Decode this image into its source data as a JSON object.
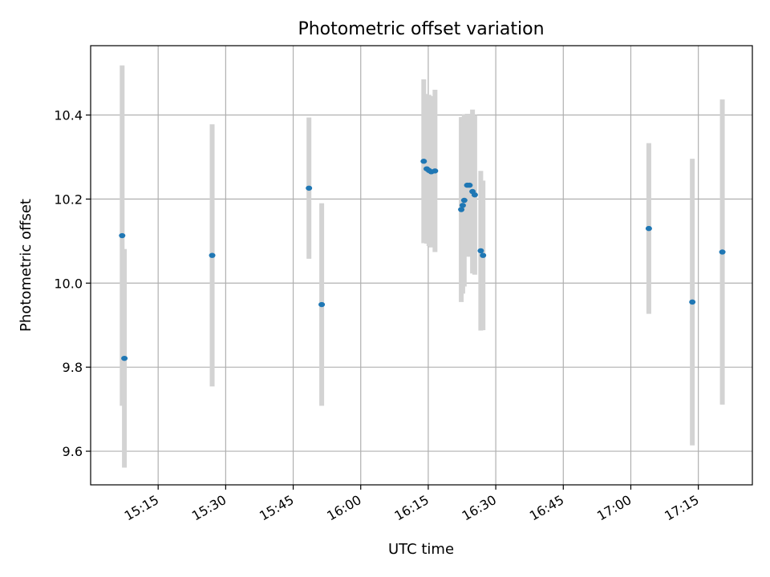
{
  "chart_data": {
    "type": "scatter",
    "title": "Photometric offset variation",
    "xlabel": "UTC time",
    "ylabel": "Photometric offset",
    "xlim": [
      "15:00",
      "17:27"
    ],
    "ylim": [
      9.52,
      10.565
    ],
    "x_ticks": [
      "15:15",
      "15:30",
      "15:45",
      "16:00",
      "16:15",
      "16:30",
      "16:45",
      "17:00",
      "17:15"
    ],
    "y_ticks": [
      9.6,
      9.8,
      10.0,
      10.2,
      10.4
    ],
    "y_tick_labels": [
      "9.6",
      "9.8",
      "10.0",
      "10.2",
      "10.4"
    ],
    "grid": true,
    "marker_color": "#1f77b4",
    "errorbar_color": "#d3d3d3",
    "points": [
      {
        "x": "15:07:00",
        "y": 10.113,
        "err": 0.405
      },
      {
        "x": "15:07:30",
        "y": 9.821,
        "err": 0.26
      },
      {
        "x": "15:27:00",
        "y": 10.066,
        "err": 0.312
      },
      {
        "x": "15:48:30",
        "y": 10.226,
        "err": 0.168
      },
      {
        "x": "15:51:20",
        "y": 9.949,
        "err": 0.241
      },
      {
        "x": "16:14:00",
        "y": 10.29,
        "err": 0.195
      },
      {
        "x": "16:14:40",
        "y": 10.272,
        "err": 0.178
      },
      {
        "x": "16:15:10",
        "y": 10.268,
        "err": 0.18
      },
      {
        "x": "16:15:40",
        "y": 10.265,
        "err": 0.18
      },
      {
        "x": "16:16:30",
        "y": 10.267,
        "err": 0.193
      },
      {
        "x": "16:22:20",
        "y": 10.175,
        "err": 0.22
      },
      {
        "x": "16:22:40",
        "y": 10.185,
        "err": 0.21
      },
      {
        "x": "16:23:00",
        "y": 10.197,
        "err": 0.205
      },
      {
        "x": "16:23:40",
        "y": 10.233,
        "err": 0.17
      },
      {
        "x": "16:24:10",
        "y": 10.233,
        "err": 0.17
      },
      {
        "x": "16:24:50",
        "y": 10.218,
        "err": 0.195
      },
      {
        "x": "16:25:20",
        "y": 10.21,
        "err": 0.19
      },
      {
        "x": "16:26:40",
        "y": 10.077,
        "err": 0.19
      },
      {
        "x": "16:27:10",
        "y": 10.066,
        "err": 0.178
      },
      {
        "x": "17:04:00",
        "y": 10.13,
        "err": 0.203
      },
      {
        "x": "17:13:40",
        "y": 9.955,
        "err": 0.341
      },
      {
        "x": "17:20:20",
        "y": 10.074,
        "err": 0.363
      }
    ]
  }
}
